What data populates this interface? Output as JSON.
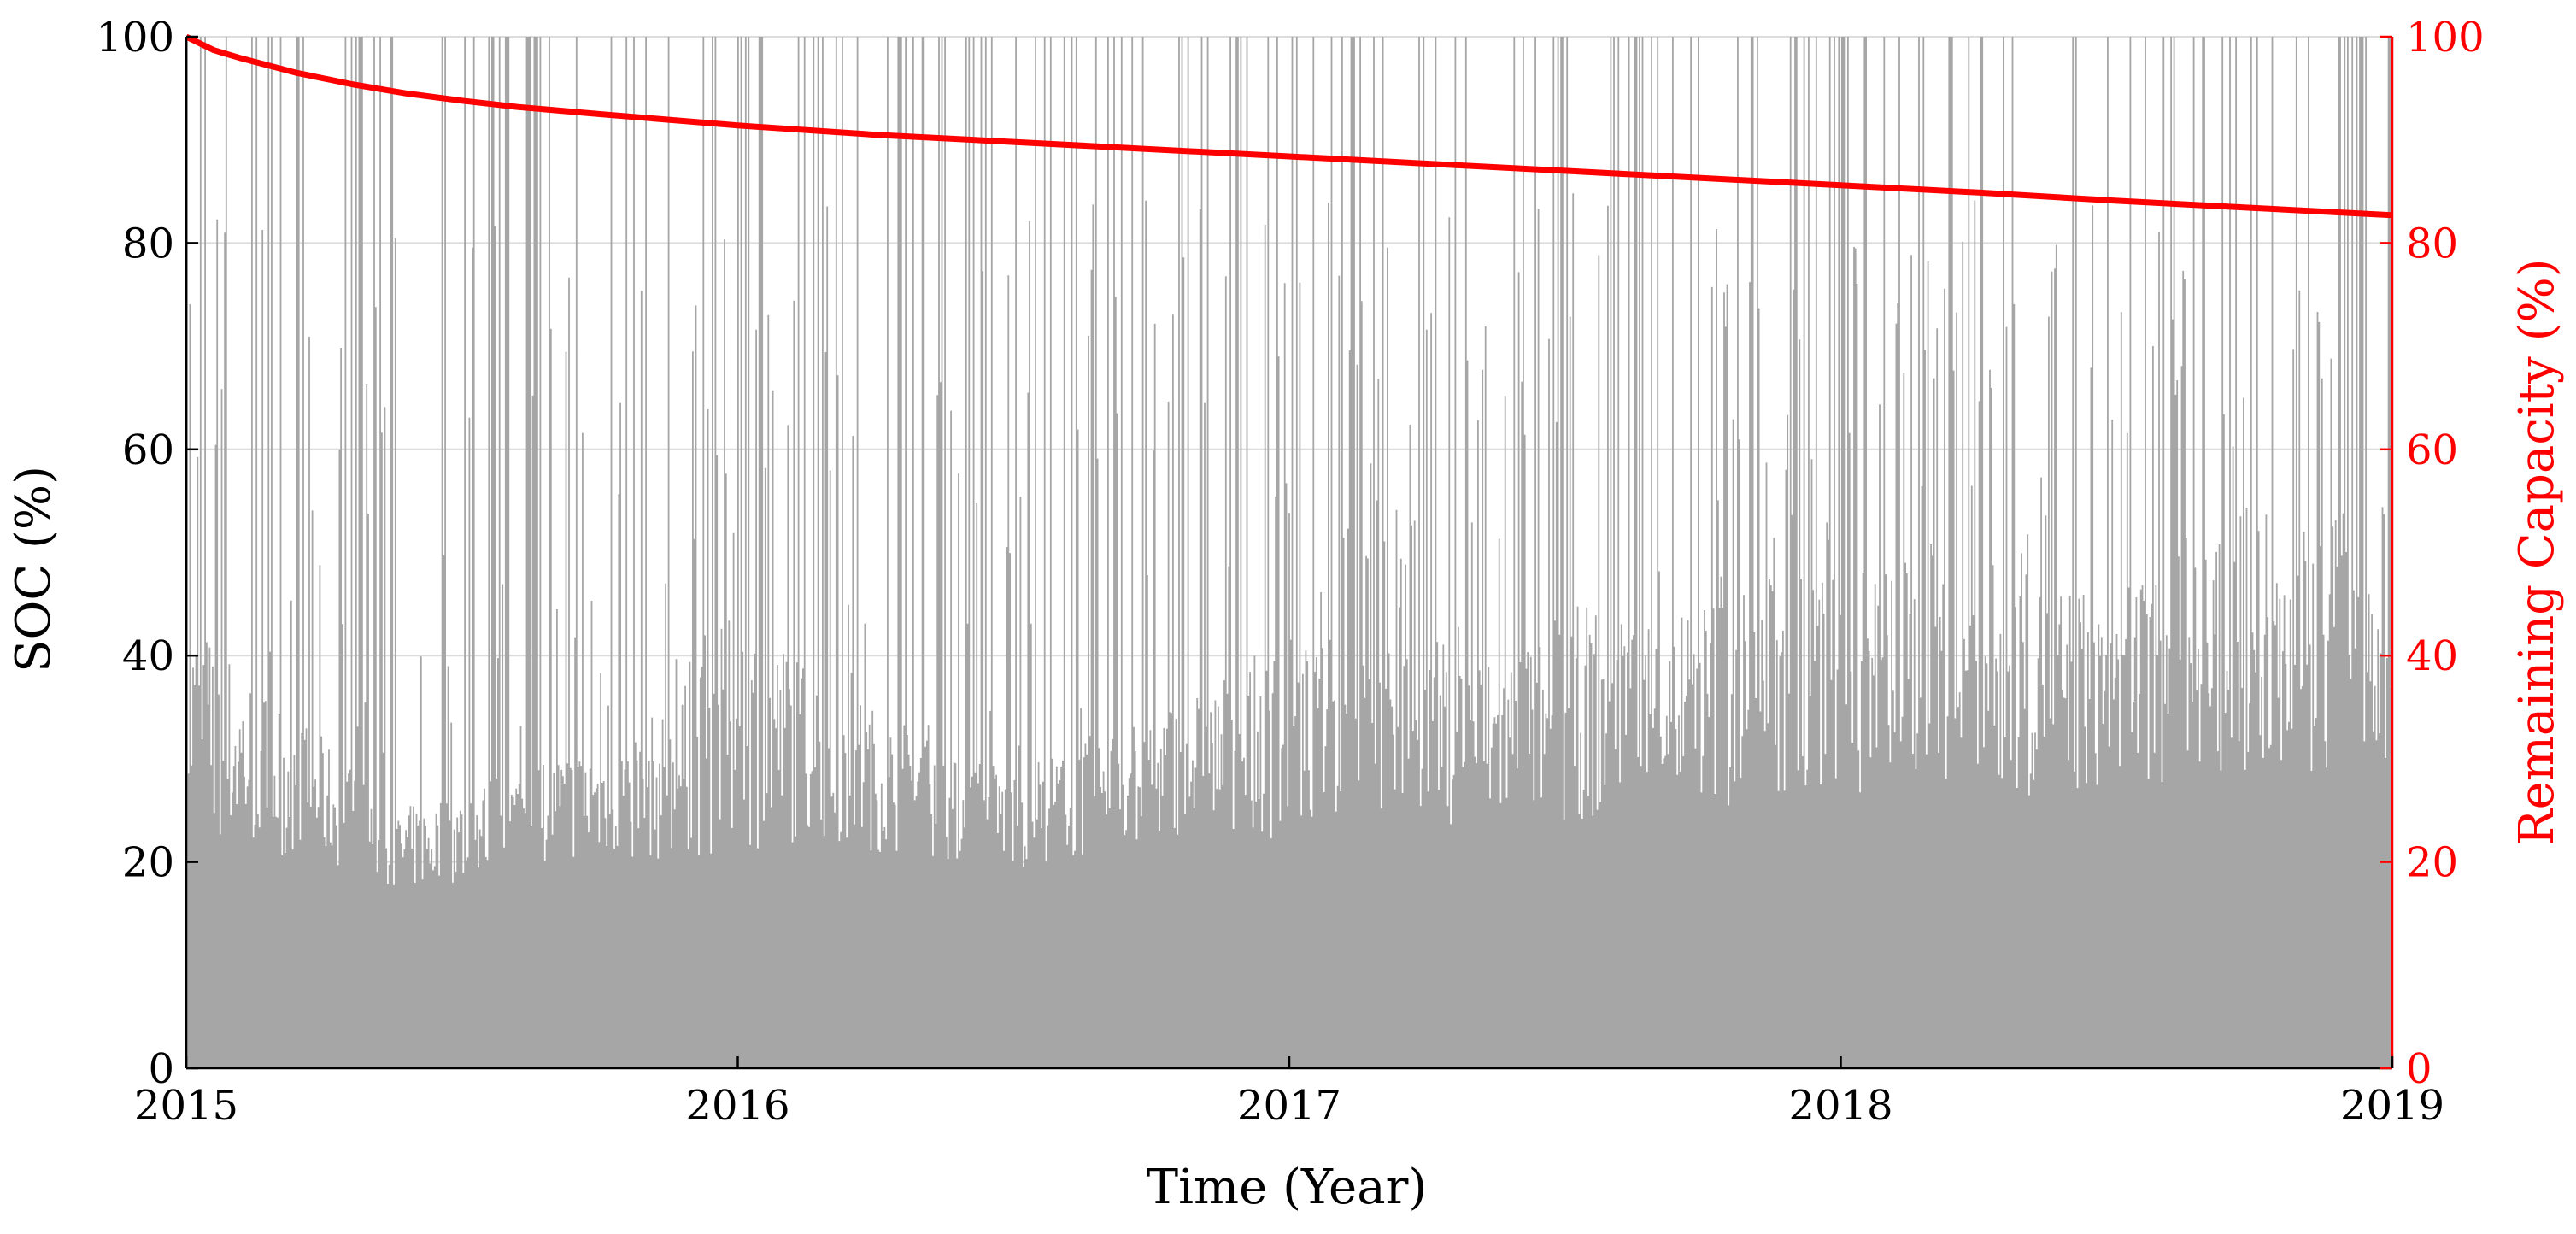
{
  "chart_data": {
    "type": "area",
    "xlabel": "Time (Year)",
    "ylabel_left": "SOC (%)",
    "ylabel_right": "Remaining Capacity (%)",
    "x_ticks": [
      "2015",
      "2016",
      "2017",
      "2018",
      "2019"
    ],
    "y_ticks_left": [
      "0",
      "20",
      "40",
      "60",
      "80",
      "100"
    ],
    "y_ticks_right": [
      "0",
      "20",
      "40",
      "60",
      "80",
      "100"
    ],
    "xlim": [
      2015,
      2019
    ],
    "ylim_left": [
      0,
      100
    ],
    "ylim_right": [
      0,
      100
    ],
    "grid": true,
    "colors": {
      "soc": "#a6a6a6",
      "capacity": "#ff0000",
      "axis": "#000000",
      "grid": "#dcdcdc"
    },
    "series": [
      {
        "name": "SOC (%)",
        "axis": "left",
        "description": "dense daily SOC trace; typical range about 20-45%, frequent spikes to 100%",
        "x": [
          2015.0,
          2015.125,
          2015.25,
          2015.375,
          2015.5,
          2015.625,
          2015.75,
          2015.875,
          2016.0,
          2016.125,
          2016.25,
          2016.375,
          2016.5,
          2016.625,
          2016.75,
          2016.875,
          2017.0,
          2017.125,
          2017.25,
          2017.375,
          2017.5,
          2017.625,
          2017.75,
          2017.875,
          2018.0,
          2018.125,
          2018.25,
          2018.375,
          2018.5,
          2018.625,
          2018.75,
          2018.875,
          2019.0
        ],
        "y_base": [
          22,
          21,
          20,
          17,
          18,
          20,
          20,
          20,
          21,
          22,
          21,
          20,
          19,
          20,
          22,
          23,
          22,
          25,
          24,
          23,
          24,
          24,
          25,
          25,
          26,
          27,
          27,
          26,
          27,
          28,
          28,
          29,
          30
        ],
        "y_typical_high": [
          45,
          38,
          32,
          25,
          27,
          30,
          32,
          35,
          45,
          40,
          35,
          30,
          30,
          32,
          35,
          38,
          42,
          40,
          42,
          40,
          45,
          45,
          46,
          48,
          48,
          50,
          50,
          47,
          48,
          50,
          52,
          54,
          55
        ]
      },
      {
        "name": "Remaining Capacity (%)",
        "axis": "right",
        "x": [
          2015.0,
          2015.05,
          2015.1,
          2015.2,
          2015.3,
          2015.4,
          2015.5,
          2015.6,
          2015.75,
          2016.0,
          2016.25,
          2016.5,
          2016.75,
          2017.0,
          2017.25,
          2017.5,
          2017.75,
          2018.0,
          2018.25,
          2018.5,
          2018.75,
          2019.0
        ],
        "y": [
          100.0,
          98.7,
          97.9,
          96.5,
          95.4,
          94.5,
          93.8,
          93.2,
          92.5,
          91.4,
          90.5,
          89.8,
          89.1,
          88.4,
          87.7,
          87.0,
          86.3,
          85.6,
          84.9,
          84.1,
          83.4,
          82.7
        ]
      }
    ]
  }
}
